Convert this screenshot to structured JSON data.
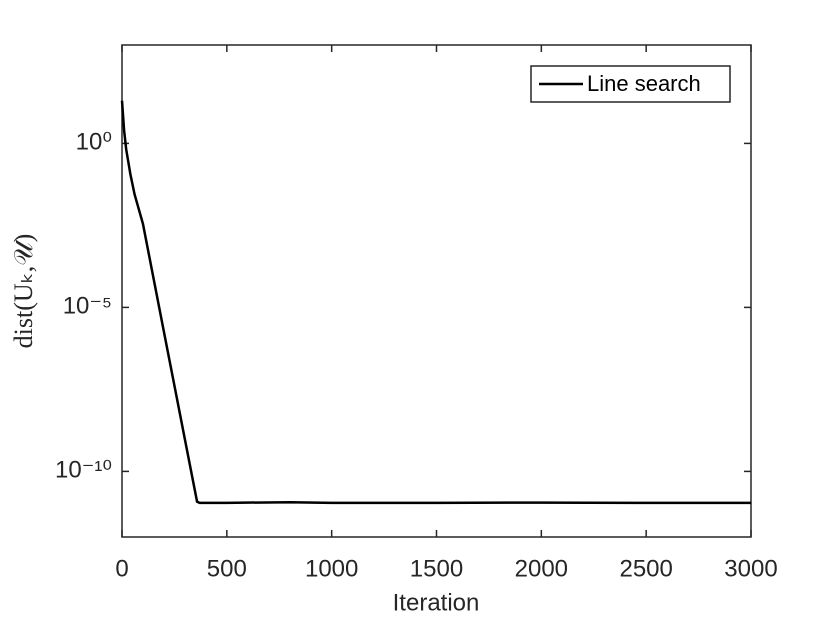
{
  "chart_data": {
    "type": "line",
    "xlabel": "Iteration",
    "ylabel": "dist(Uₖ,𝒰)",
    "x": [
      0,
      10,
      20,
      40,
      60,
      100,
      200,
      300,
      358,
      370,
      500,
      800,
      1000,
      1500,
      2000,
      2500,
      3000
    ],
    "series": [
      {
        "name": "Line search",
        "color": "#000000",
        "values": [
          20,
          2.5,
          0.66,
          0.115,
          0.028,
          0.0035,
          1.8e-06,
          9.5e-10,
          1.2e-11,
          1.1e-11,
          1.1e-11,
          1.15e-11,
          1.1e-11,
          1.1e-11,
          1.12e-11,
          1.1e-11,
          1.1e-11
        ]
      }
    ],
    "xlim": [
      0,
      3000
    ],
    "xticks": [
      0,
      500,
      1000,
      1500,
      2000,
      2500,
      3000
    ],
    "ylim": [
      1e-12,
      1000
    ],
    "ylog": true,
    "yticks": [
      {
        "value": 1e-10,
        "label": "10⁻¹⁰"
      },
      {
        "value": 1e-05,
        "label": "10⁻⁵"
      },
      {
        "value": 1,
        "label": "10⁰"
      }
    ],
    "legend": "upper right",
    "grid": false
  }
}
